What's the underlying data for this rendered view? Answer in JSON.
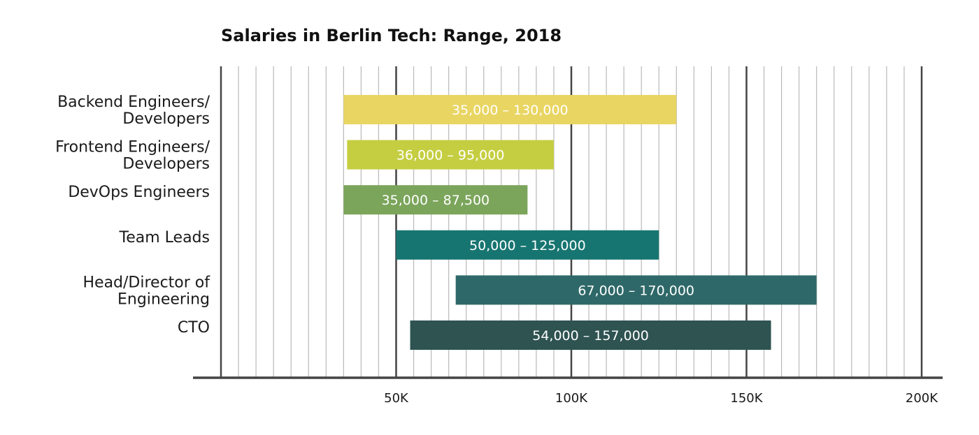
{
  "chart_data": {
    "type": "bar",
    "orientation": "horizontal-range",
    "title": "Salaries in Berlin Tech: Range, 2018",
    "xlabel": "",
    "ylabel": "",
    "xlim": [
      0,
      200000
    ],
    "grid": true,
    "ticks": [
      {
        "value": 50000,
        "label": "50K"
      },
      {
        "value": 100000,
        "label": "100K"
      },
      {
        "value": 150000,
        "label": "150K"
      },
      {
        "value": 200000,
        "label": "200K"
      }
    ],
    "categories": [
      "Backend Engineers/ Developers",
      "Frontend Engineers/ Developers",
      "DevOps Engineers",
      "Team Leads",
      "Head/Director of Engineering",
      "CTO"
    ],
    "bars": [
      {
        "category": "Backend Engineers/ Developers",
        "label_lines": [
          "Backend Engineers/",
          "Developers"
        ],
        "min": 35000,
        "max": 130000,
        "value_label": "35,000 – 130,000",
        "color": "#e9d562"
      },
      {
        "category": "Frontend Engineers/ Developers",
        "label_lines": [
          "Frontend Engineers/",
          "Developers"
        ],
        "min": 36000,
        "max": 95000,
        "value_label": "36,000 – 95,000",
        "color": "#c5ce41"
      },
      {
        "category": "DevOps Engineers",
        "label_lines": [
          "DevOps Engineers"
        ],
        "min": 35000,
        "max": 87500,
        "value_label": "35,000 – 87,500",
        "color": "#7ba55b"
      },
      {
        "category": "Team Leads",
        "label_lines": [
          "Team Leads"
        ],
        "min": 50000,
        "max": 125000,
        "value_label": "50,000 – 125,000",
        "color": "#177571"
      },
      {
        "category": "Head/Director of Engineering",
        "label_lines": [
          "Head/Director of",
          "Engineering"
        ],
        "min": 67000,
        "max": 170000,
        "value_label": "67,000 – 170,000",
        "color": "#2f6868"
      },
      {
        "category": "CTO",
        "label_lines": [
          "CTO"
        ],
        "min": 54000,
        "max": 157000,
        "value_label": "54,000 – 157,000",
        "color": "#2e5351"
      }
    ]
  }
}
